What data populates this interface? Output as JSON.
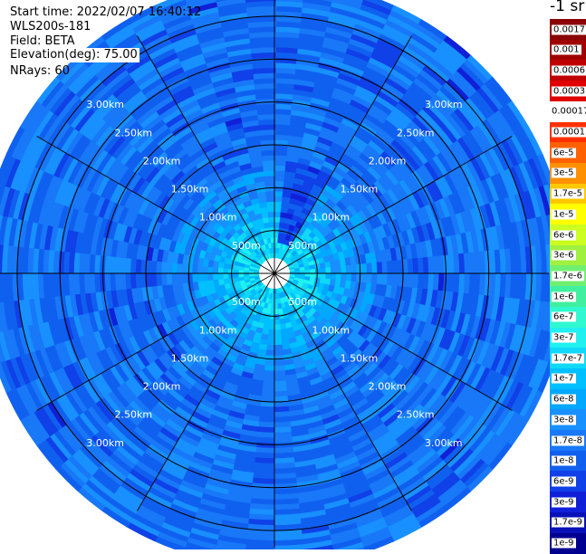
{
  "header": {
    "start_time": "Start time: 2022/02/07 16:40:12",
    "instrument": "WLS200s-181",
    "field": "Field: BETA",
    "elevation": "Elevation(deg): 75.00",
    "nrays": "NRays: 60"
  },
  "colorbar": {
    "unit_label": "-1 sr",
    "entries": [
      {
        "label": "0.0017",
        "color": "#8b0000"
      },
      {
        "label": "0.001",
        "color": "#a00000"
      },
      {
        "label": "0.0006",
        "color": "#c00000"
      },
      {
        "label": "0.0003",
        "color": "#e00000"
      },
      {
        "label": "0.00017",
        "color": "#ffffff"
      },
      {
        "label": "0.0001",
        "color": "#ff3000"
      },
      {
        "label": "6e-5",
        "color": "#ff6000"
      },
      {
        "label": "3e-5",
        "color": "#ff9000"
      },
      {
        "label": "1.7e-5",
        "color": "#ffc800"
      },
      {
        "label": "1e-5",
        "color": "#ffff00"
      },
      {
        "label": "6e-6",
        "color": "#ccff20"
      },
      {
        "label": "3e-6",
        "color": "#a0f040"
      },
      {
        "label": "1.7e-6",
        "color": "#70f070"
      },
      {
        "label": "1e-6",
        "color": "#40f0a0"
      },
      {
        "label": "6e-7",
        "color": "#30f8d0"
      },
      {
        "label": "3e-7",
        "color": "#20f0f0"
      },
      {
        "label": "1.7e-7",
        "color": "#10d8f8"
      },
      {
        "label": "1e-7",
        "color": "#00c0ff"
      },
      {
        "label": "6e-8",
        "color": "#00a8ff"
      },
      {
        "label": "3e-8",
        "color": "#1890ff"
      },
      {
        "label": "1.7e-8",
        "color": "#1878f8"
      },
      {
        "label": "1e-8",
        "color": "#1060f0"
      },
      {
        "label": "6e-9",
        "color": "#1040e8"
      },
      {
        "label": "3e-9",
        "color": "#1020d8"
      },
      {
        "label": "1.7e-9",
        "color": "#0810b8"
      },
      {
        "label": "1e-9",
        "color": "#000090"
      }
    ]
  },
  "chart_data": {
    "type": "heatmap",
    "projection": "polar PPI",
    "field": "BETA",
    "elevation_deg": 75.0,
    "nrays": 60,
    "range_rings_km": [
      0.5,
      1.0,
      1.5,
      2.0,
      2.5,
      3.0
    ],
    "ring_labels": [
      "500m",
      "1.00km",
      "1.50km",
      "2.00km",
      "2.50km",
      "3.00km"
    ],
    "radial_spokes_deg": [
      0,
      30,
      60,
      90,
      120,
      150,
      180,
      210,
      240,
      270,
      300,
      330
    ],
    "max_range_km": 3.2,
    "value_profile_by_range": [
      {
        "range_km_from": 0.1,
        "range_km_to": 0.6,
        "approx_value": "1.7e-7"
      },
      {
        "range_km_from": 0.6,
        "range_km_to": 1.2,
        "approx_value": "6e-8"
      },
      {
        "range_km_from": 1.2,
        "range_km_to": 3.2,
        "approx_value": "1.7e-8 to 3e-9"
      }
    ],
    "colors": {
      "background": "#ffffff",
      "grid": "#000000",
      "ring_label": "#ffffff"
    }
  }
}
